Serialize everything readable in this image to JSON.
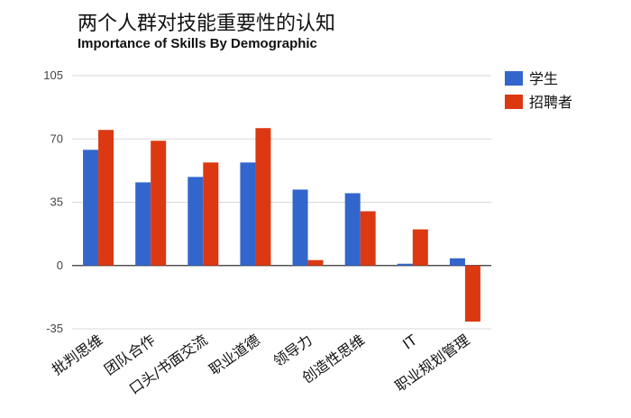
{
  "chart_data": {
    "type": "bar",
    "title": "两个人群对技能重要性的认知",
    "subtitle": "Importance of Skills By Demographic",
    "categories": [
      "批判思维",
      "团队合作",
      "口头/书面交流",
      "职业道德",
      "领导力",
      "创造性思维",
      "IT",
      "职业规划管理"
    ],
    "series": [
      {
        "name": "学生",
        "color": "#3366cc",
        "values": [
          64,
          46,
          49,
          57,
          42,
          40,
          1,
          4
        ]
      },
      {
        "name": "招聘者",
        "color": "#dc3912",
        "values": [
          75,
          69,
          57,
          76,
          3,
          30,
          20,
          -31
        ]
      }
    ],
    "y_ticks": [
      105,
      70,
      35,
      0,
      -35
    ],
    "ylim": [
      -35,
      105
    ],
    "grid": true,
    "legend_position": "right"
  }
}
